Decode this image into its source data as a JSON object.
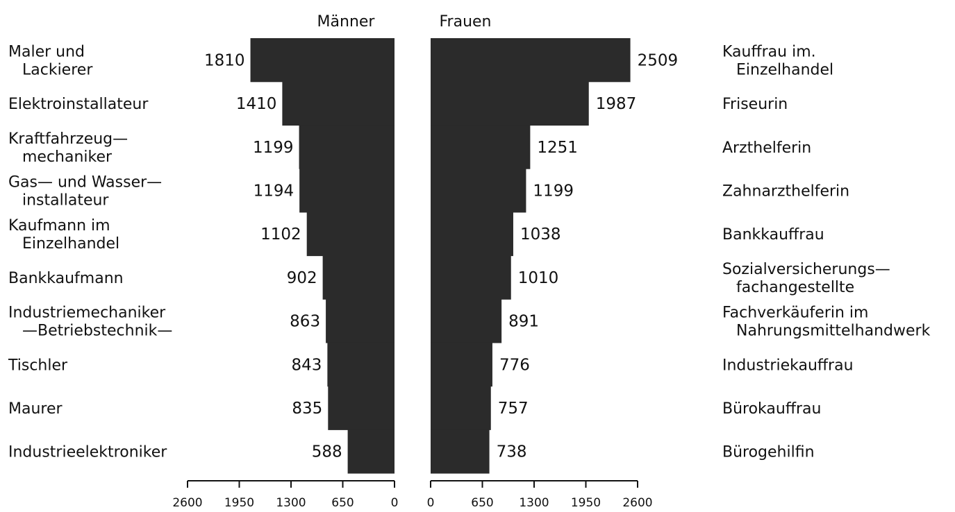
{
  "chart_data": {
    "type": "bar",
    "orientation": "horizontal",
    "layout": "back-to-back",
    "bar_color": "#2b2b2b",
    "axis_ticks": [
      0,
      650,
      1300,
      1950,
      2600
    ],
    "xlim": [
      0,
      2600
    ],
    "series": [
      {
        "name": "Männer",
        "side": "left",
        "categories": [
          [
            "Maler und",
            "Lackierer"
          ],
          [
            "Elektroinstallateur"
          ],
          [
            "Kraftfahrzeug—",
            "mechaniker"
          ],
          [
            "Gas— und Wasser—",
            "installateur"
          ],
          [
            "Kaufmann im",
            "Einzelhandel"
          ],
          [
            "Bankkaufmann"
          ],
          [
            "Industriemechaniker",
            "—Betriebstechnik—"
          ],
          [
            "Tischler"
          ],
          [
            "Maurer"
          ],
          [
            "Industrieelektroniker"
          ]
        ],
        "values": [
          1810,
          1410,
          1199,
          1194,
          1102,
          902,
          863,
          843,
          835,
          588
        ]
      },
      {
        "name": "Frauen",
        "side": "right",
        "categories": [
          [
            "Kauffrau im.",
            "Einzelhandel"
          ],
          [
            "Friseurin"
          ],
          [
            "Arzthelferin"
          ],
          [
            "Zahnarzthelferin"
          ],
          [
            "Bankkauffrau"
          ],
          [
            "Sozialversicherungs—",
            "fachangestellte"
          ],
          [
            "Fachverkäuferin im",
            "Nahrungsmittelhandwerk"
          ],
          [
            "Industriekauffrau"
          ],
          [
            "Bürokauffrau"
          ],
          [
            "Bürogehilfin"
          ]
        ],
        "values": [
          2509,
          1987,
          1251,
          1199,
          1038,
          1010,
          891,
          776,
          757,
          738
        ]
      }
    ]
  }
}
